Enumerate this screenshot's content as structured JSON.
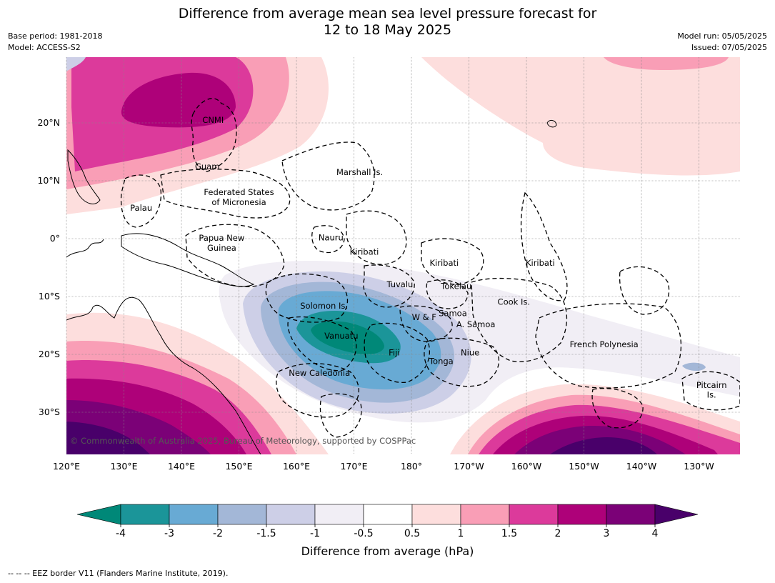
{
  "header": {
    "title_line1": "Difference from average mean sea level pressure forecast for",
    "title_line2": "12 to 18 May 2025",
    "base_period": "Base period: 1981-2018",
    "model": "Model: ACCESS-S2",
    "model_run": "Model run: 05/05/2025",
    "issued": "Issued: 07/05/2025"
  },
  "map": {
    "lon_ticks": [
      "120°E",
      "130°E",
      "140°E",
      "150°E",
      "160°E",
      "170°E",
      "180°",
      "170°W",
      "160°W",
      "150°W",
      "140°W",
      "130°W"
    ],
    "lat_ticks": [
      "20°N",
      "10°N",
      "0°",
      "10°S",
      "20°S",
      "30°S"
    ],
    "credit": "© Commonwealth of Australia 2025, Bureau of Meteorology, supported by COSPPac",
    "places": [
      {
        "name": "CNMI",
        "lon": 145.5,
        "lat": 20.5
      },
      {
        "name": "Guam",
        "lon": 144.5,
        "lat": 12.5
      },
      {
        "name": "Marshall Is.",
        "lon": 171,
        "lat": 11.5
      },
      {
        "name": "Federated States",
        "lon": 150,
        "lat": 8.0
      },
      {
        "name": "of Micronesia",
        "lon": 150,
        "lat": 6.3
      },
      {
        "name": "Palau",
        "lon": 133,
        "lat": 5.3
      },
      {
        "name": "Papua New",
        "lon": 147,
        "lat": 0.1
      },
      {
        "name": "Guinea",
        "lon": 147,
        "lat": -1.6
      },
      {
        "name": "Nauru",
        "lon": 166,
        "lat": 0.2
      },
      {
        "name": "Kiribati",
        "lon": 171.8,
        "lat": -2.3
      },
      {
        "name": "Kiribati",
        "lon": -174.3,
        "lat": -4.2
      },
      {
        "name": "Kiribati",
        "lon": -157.6,
        "lat": -4.2
      },
      {
        "name": "Tuvalu",
        "lon": 178,
        "lat": -7.9
      },
      {
        "name": "Tokelau",
        "lon": -172.2,
        "lat": -8.2
      },
      {
        "name": "Solomon Is.",
        "lon": 164.8,
        "lat": -11.6
      },
      {
        "name": "Cook Is.",
        "lon": -162.2,
        "lat": -10.9
      },
      {
        "name": "Samoa",
        "lon": -172.8,
        "lat": -12.9
      },
      {
        "name": "W & F",
        "lon": -177.8,
        "lat": -13.6
      },
      {
        "name": "A. Samoa",
        "lon": -168.8,
        "lat": -14.8
      },
      {
        "name": "Vanuatu",
        "lon": 167.8,
        "lat": -16.8
      },
      {
        "name": "Fiji",
        "lon": 177,
        "lat": -19.7
      },
      {
        "name": "Niue",
        "lon": -169.8,
        "lat": -19.7
      },
      {
        "name": "French Polynesia",
        "lon": -146.5,
        "lat": -18.3
      },
      {
        "name": "Tonga",
        "lon": -174.8,
        "lat": -21.2
      },
      {
        "name": "New Caledonia",
        "lon": 164,
        "lat": -23.2
      },
      {
        "name": "Pitcairn",
        "lon": -127.8,
        "lat": -25.3
      },
      {
        "name": "Is.",
        "lon": -127.8,
        "lat": -27.0
      }
    ]
  },
  "colorbar": {
    "ticks": [
      "-4",
      "-3",
      "-2",
      "-1.5",
      "-1",
      "-0.5",
      "0.5",
      "1",
      "1.5",
      "2",
      "3",
      "4"
    ],
    "colors": [
      "#008878",
      "#1b9599",
      "#68aad4",
      "#a3b7d7",
      "#cdcfe7",
      "#f1eef5",
      "#ffffff",
      "#fddedd",
      "#f99eb6",
      "#dc3a9b",
      "#ae0179",
      "#7b0177",
      "#49006a"
    ],
    "label": "Difference from average (hPa)"
  },
  "footer": "--  --  -- EEZ border V11 (Flanders Marine Institute, 2019)."
}
